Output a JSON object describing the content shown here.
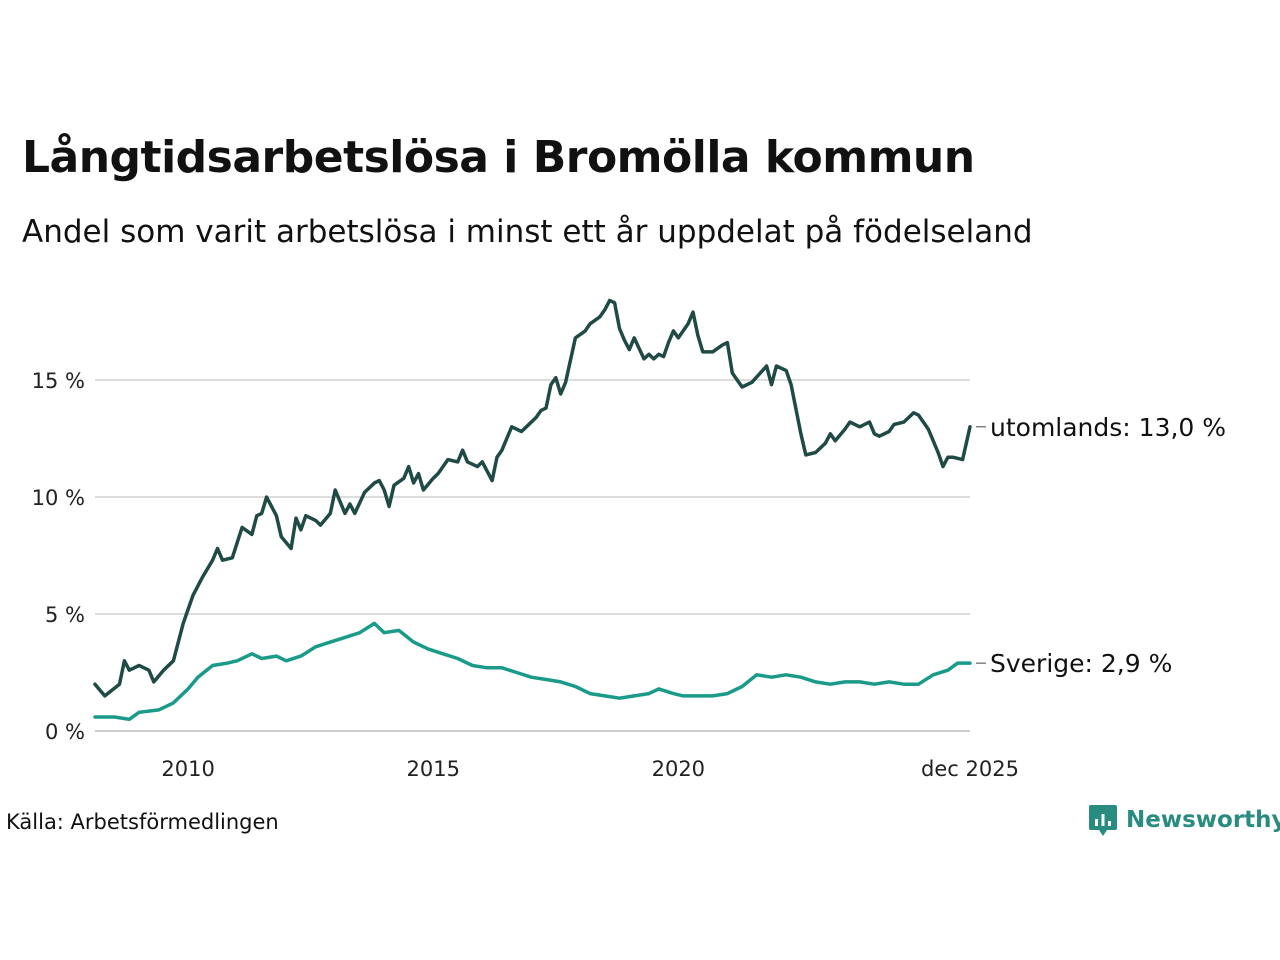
{
  "title": "Långtidsarbetslösa i Bromölla kommun",
  "subtitle": "Andel som varit arbetslösa i minst ett år uppdelat på födelseland",
  "source": "Källa: Arbetsförmedlingen",
  "brand": {
    "name": "Newsworthy",
    "icon": "newsworthy-logo-icon",
    "color": "#2a8c80"
  },
  "colors": {
    "utomlands": "#1f4a45",
    "sverige": "#1a9a88",
    "grid": "#dddddd"
  },
  "chart_data": {
    "type": "line",
    "title": "Långtidsarbetslösa i Bromölla kommun",
    "xlabel": "",
    "ylabel": "",
    "xlim": [
      2008.1,
      2025.95
    ],
    "ylim": [
      0,
      18.5
    ],
    "y_ticks": [
      {
        "value": 0,
        "label": "0 %"
      },
      {
        "value": 5,
        "label": "5 %"
      },
      {
        "value": 10,
        "label": "10 %"
      },
      {
        "value": 15,
        "label": "15 %"
      }
    ],
    "x_ticks": [
      {
        "value": 2010,
        "label": "2010"
      },
      {
        "value": 2015,
        "label": "2015"
      },
      {
        "value": 2020,
        "label": "2020"
      },
      {
        "value": 2025.95,
        "label": "dec 2025"
      }
    ],
    "grid": true,
    "series": [
      {
        "name": "utomlands",
        "end_label": "utomlands: 13,0 %",
        "points": [
          [
            2008.1,
            2.0
          ],
          [
            2008.3,
            1.5
          ],
          [
            2008.6,
            2.0
          ],
          [
            2008.7,
            3.0
          ],
          [
            2008.8,
            2.6
          ],
          [
            2009.0,
            2.8
          ],
          [
            2009.2,
            2.6
          ],
          [
            2009.3,
            2.1
          ],
          [
            2009.5,
            2.6
          ],
          [
            2009.7,
            3.0
          ],
          [
            2009.9,
            4.6
          ],
          [
            2010.1,
            5.8
          ],
          [
            2010.3,
            6.6
          ],
          [
            2010.5,
            7.3
          ],
          [
            2010.6,
            7.8
          ],
          [
            2010.7,
            7.3
          ],
          [
            2010.9,
            7.4
          ],
          [
            2011.1,
            8.7
          ],
          [
            2011.3,
            8.4
          ],
          [
            2011.4,
            9.2
          ],
          [
            2011.5,
            9.3
          ],
          [
            2011.6,
            10.0
          ],
          [
            2011.8,
            9.2
          ],
          [
            2011.9,
            8.3
          ],
          [
            2012.1,
            7.8
          ],
          [
            2012.2,
            9.1
          ],
          [
            2012.3,
            8.6
          ],
          [
            2012.4,
            9.2
          ],
          [
            2012.6,
            9.0
          ],
          [
            2012.7,
            8.8
          ],
          [
            2012.9,
            9.3
          ],
          [
            2013.0,
            10.3
          ],
          [
            2013.2,
            9.3
          ],
          [
            2013.3,
            9.7
          ],
          [
            2013.4,
            9.3
          ],
          [
            2013.6,
            10.2
          ],
          [
            2013.8,
            10.6
          ],
          [
            2013.9,
            10.7
          ],
          [
            2014.0,
            10.3
          ],
          [
            2014.1,
            9.6
          ],
          [
            2014.2,
            10.5
          ],
          [
            2014.4,
            10.8
          ],
          [
            2014.5,
            11.3
          ],
          [
            2014.6,
            10.6
          ],
          [
            2014.7,
            11.0
          ],
          [
            2014.8,
            10.3
          ],
          [
            2015.0,
            10.8
          ],
          [
            2015.1,
            11.0
          ],
          [
            2015.3,
            11.6
          ],
          [
            2015.5,
            11.5
          ],
          [
            2015.6,
            12.0
          ],
          [
            2015.7,
            11.5
          ],
          [
            2015.9,
            11.3
          ],
          [
            2016.0,
            11.5
          ],
          [
            2016.2,
            10.7
          ],
          [
            2016.3,
            11.7
          ],
          [
            2016.4,
            12.0
          ],
          [
            2016.6,
            13.0
          ],
          [
            2016.8,
            12.8
          ],
          [
            2016.9,
            13.0
          ],
          [
            2017.1,
            13.4
          ],
          [
            2017.2,
            13.7
          ],
          [
            2017.3,
            13.8
          ],
          [
            2017.4,
            14.8
          ],
          [
            2017.5,
            15.1
          ],
          [
            2017.6,
            14.4
          ],
          [
            2017.7,
            14.9
          ],
          [
            2017.9,
            16.8
          ],
          [
            2018.1,
            17.1
          ],
          [
            2018.2,
            17.4
          ],
          [
            2018.4,
            17.7
          ],
          [
            2018.5,
            18.0
          ],
          [
            2018.6,
            18.4
          ],
          [
            2018.7,
            18.3
          ],
          [
            2018.8,
            17.2
          ],
          [
            2018.9,
            16.7
          ],
          [
            2019.0,
            16.3
          ],
          [
            2019.1,
            16.8
          ],
          [
            2019.3,
            15.9
          ],
          [
            2019.4,
            16.1
          ],
          [
            2019.5,
            15.9
          ],
          [
            2019.6,
            16.1
          ],
          [
            2019.7,
            16.0
          ],
          [
            2019.8,
            16.6
          ],
          [
            2019.9,
            17.1
          ],
          [
            2020.0,
            16.8
          ],
          [
            2020.2,
            17.4
          ],
          [
            2020.3,
            17.9
          ],
          [
            2020.4,
            16.9
          ],
          [
            2020.5,
            16.2
          ],
          [
            2020.7,
            16.2
          ],
          [
            2020.9,
            16.5
          ],
          [
            2021.0,
            16.6
          ],
          [
            2021.1,
            15.3
          ],
          [
            2021.3,
            14.7
          ],
          [
            2021.5,
            14.9
          ],
          [
            2021.8,
            15.6
          ],
          [
            2021.9,
            14.8
          ],
          [
            2022.0,
            15.6
          ],
          [
            2022.2,
            15.4
          ],
          [
            2022.3,
            14.8
          ],
          [
            2022.5,
            12.7
          ],
          [
            2022.6,
            11.8
          ],
          [
            2022.8,
            11.9
          ],
          [
            2023.0,
            12.3
          ],
          [
            2023.1,
            12.7
          ],
          [
            2023.2,
            12.4
          ],
          [
            2023.4,
            12.9
          ],
          [
            2023.5,
            13.2
          ],
          [
            2023.7,
            13.0
          ],
          [
            2023.9,
            13.2
          ],
          [
            2024.0,
            12.7
          ],
          [
            2024.1,
            12.6
          ],
          [
            2024.3,
            12.8
          ],
          [
            2024.4,
            13.1
          ],
          [
            2024.6,
            13.2
          ],
          [
            2024.8,
            13.6
          ],
          [
            2024.9,
            13.5
          ],
          [
            2025.1,
            12.9
          ],
          [
            2025.3,
            11.9
          ],
          [
            2025.4,
            11.3
          ],
          [
            2025.5,
            11.7
          ],
          [
            2025.6,
            11.7
          ],
          [
            2025.8,
            11.6
          ],
          [
            2025.95,
            13.0
          ]
        ]
      },
      {
        "name": "Sverige",
        "end_label": "Sverige:  2,9 %",
        "points": [
          [
            2008.1,
            0.6
          ],
          [
            2008.5,
            0.6
          ],
          [
            2008.8,
            0.5
          ],
          [
            2009.0,
            0.8
          ],
          [
            2009.4,
            0.9
          ],
          [
            2009.7,
            1.2
          ],
          [
            2010.0,
            1.8
          ],
          [
            2010.2,
            2.3
          ],
          [
            2010.5,
            2.8
          ],
          [
            2010.8,
            2.9
          ],
          [
            2011.0,
            3.0
          ],
          [
            2011.3,
            3.3
          ],
          [
            2011.5,
            3.1
          ],
          [
            2011.8,
            3.2
          ],
          [
            2012.0,
            3.0
          ],
          [
            2012.3,
            3.2
          ],
          [
            2012.6,
            3.6
          ],
          [
            2012.9,
            3.8
          ],
          [
            2013.2,
            4.0
          ],
          [
            2013.5,
            4.2
          ],
          [
            2013.8,
            4.6
          ],
          [
            2014.0,
            4.2
          ],
          [
            2014.3,
            4.3
          ],
          [
            2014.6,
            3.8
          ],
          [
            2014.9,
            3.5
          ],
          [
            2015.2,
            3.3
          ],
          [
            2015.5,
            3.1
          ],
          [
            2015.8,
            2.8
          ],
          [
            2016.1,
            2.7
          ],
          [
            2016.4,
            2.7
          ],
          [
            2016.7,
            2.5
          ],
          [
            2017.0,
            2.3
          ],
          [
            2017.3,
            2.2
          ],
          [
            2017.6,
            2.1
          ],
          [
            2017.9,
            1.9
          ],
          [
            2018.2,
            1.6
          ],
          [
            2018.5,
            1.5
          ],
          [
            2018.8,
            1.4
          ],
          [
            2019.1,
            1.5
          ],
          [
            2019.4,
            1.6
          ],
          [
            2019.6,
            1.8
          ],
          [
            2019.9,
            1.6
          ],
          [
            2020.1,
            1.5
          ],
          [
            2020.4,
            1.5
          ],
          [
            2020.7,
            1.5
          ],
          [
            2021.0,
            1.6
          ],
          [
            2021.3,
            1.9
          ],
          [
            2021.6,
            2.4
          ],
          [
            2021.9,
            2.3
          ],
          [
            2022.2,
            2.4
          ],
          [
            2022.5,
            2.3
          ],
          [
            2022.8,
            2.1
          ],
          [
            2023.1,
            2.0
          ],
          [
            2023.4,
            2.1
          ],
          [
            2023.7,
            2.1
          ],
          [
            2024.0,
            2.0
          ],
          [
            2024.3,
            2.1
          ],
          [
            2024.6,
            2.0
          ],
          [
            2024.9,
            2.0
          ],
          [
            2025.2,
            2.4
          ],
          [
            2025.5,
            2.6
          ],
          [
            2025.7,
            2.9
          ],
          [
            2025.95,
            2.9
          ]
        ]
      }
    ]
  }
}
